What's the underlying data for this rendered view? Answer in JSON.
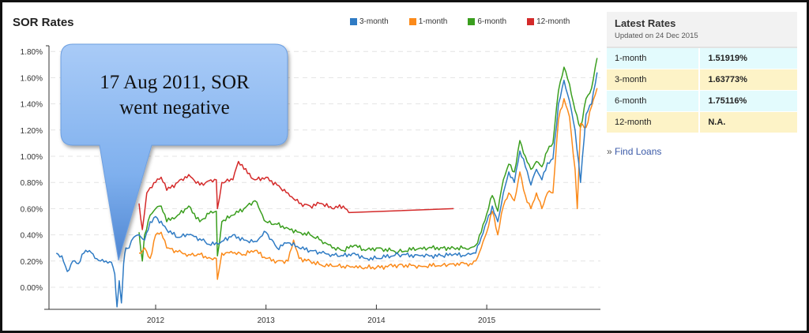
{
  "header": {
    "title": "SOR Rates"
  },
  "legend": [
    {
      "label": "3-month",
      "color": "#2f7bc4"
    },
    {
      "label": "1-month",
      "color": "#fb8a1a"
    },
    {
      "label": "6-month",
      "color": "#3a9e1e"
    },
    {
      "label": "12-month",
      "color": "#d42a2a"
    }
  ],
  "callout": {
    "line1": "17 Aug 2011, SOR",
    "line2": "went negative"
  },
  "panel": {
    "title": "Latest Rates",
    "updated": "Updated on 24 Dec 2015",
    "rows": [
      {
        "tenor": "1-month",
        "rate": "1.51919%"
      },
      {
        "tenor": "3-month",
        "rate": "1.63773%"
      },
      {
        "tenor": "6-month",
        "rate": "1.75116%"
      },
      {
        "tenor": "12-month",
        "rate": "N.A."
      }
    ],
    "link_prefix": "»",
    "link_label": "Find Loans"
  },
  "chart_data": {
    "type": "line",
    "title": "SOR Rates",
    "xlabel": "",
    "ylabel": "",
    "ylim": [
      -0.17,
      1.8
    ],
    "xlim": [
      2011.1,
      2016.0
    ],
    "y_ticks": [
      "0.00%",
      "0.20%",
      "0.40%",
      "0.60%",
      "0.80%",
      "1.00%",
      "1.20%",
      "1.40%",
      "1.60%",
      "1.80%"
    ],
    "x_ticks": [
      "2012",
      "2013",
      "2014",
      "2015"
    ],
    "grid": "horizontal dashed",
    "legend_position": "top",
    "annotation": "17 Aug 2011, SOR went negative",
    "series": [
      {
        "name": "3-month",
        "color": "#2f7bc4",
        "x": [
          2011.1,
          2011.15,
          2011.2,
          2011.25,
          2011.3,
          2011.35,
          2011.4,
          2011.45,
          2011.5,
          2011.55,
          2011.6,
          2011.63,
          2011.65,
          2011.67,
          2011.69,
          2011.71,
          2011.73,
          2011.76,
          2011.8,
          2011.85,
          2011.9,
          2011.95,
          2012.0,
          2012.1,
          2012.2,
          2012.3,
          2012.4,
          2012.5,
          2012.6,
          2012.7,
          2012.8,
          2012.9,
          2013.0,
          2013.1,
          2013.2,
          2013.3,
          2013.4,
          2013.5,
          2013.6,
          2013.7,
          2013.8,
          2013.9,
          2014.0,
          2014.2,
          2014.4,
          2014.6,
          2014.7,
          2014.8,
          2014.85,
          2014.9,
          2014.95,
          2015.0,
          2015.05,
          2015.1,
          2015.15,
          2015.2,
          2015.25,
          2015.3,
          2015.35,
          2015.4,
          2015.45,
          2015.5,
          2015.55,
          2015.6,
          2015.65,
          2015.7,
          2015.75,
          2015.8,
          2015.85,
          2015.9,
          2015.95,
          2016.0
        ],
        "values": [
          0.26,
          0.24,
          0.12,
          0.2,
          0.18,
          0.26,
          0.28,
          0.22,
          0.2,
          0.2,
          0.19,
          0.1,
          -0.15,
          0.05,
          -0.12,
          0.18,
          0.3,
          0.3,
          0.38,
          0.4,
          0.36,
          0.5,
          0.54,
          0.44,
          0.38,
          0.4,
          0.37,
          0.32,
          0.35,
          0.4,
          0.36,
          0.35,
          0.42,
          0.3,
          0.34,
          0.3,
          0.28,
          0.26,
          0.25,
          0.24,
          0.26,
          0.22,
          0.22,
          0.25,
          0.24,
          0.24,
          0.25,
          0.24,
          0.25,
          0.26,
          0.38,
          0.5,
          0.62,
          0.5,
          0.72,
          0.88,
          0.8,
          1.04,
          0.92,
          0.78,
          0.9,
          0.82,
          0.95,
          0.98,
          1.4,
          1.58,
          1.42,
          1.2,
          0.8,
          1.32,
          1.4,
          1.64
        ]
      },
      {
        "name": "1-month",
        "color": "#fb8a1a",
        "x": [
          2011.85,
          2011.9,
          2011.95,
          2012.0,
          2012.05,
          2012.1,
          2012.2,
          2012.3,
          2012.4,
          2012.5,
          2012.55,
          2012.56,
          2012.6,
          2012.7,
          2012.8,
          2012.9,
          2013.0,
          2013.1,
          2013.2,
          2013.25,
          2013.3,
          2013.4,
          2013.5,
          2013.6,
          2013.7,
          2013.8,
          2013.9,
          2014.0,
          2014.2,
          2014.4,
          2014.6,
          2014.7,
          2014.8,
          2014.85,
          2014.9,
          2014.95,
          2015.0,
          2015.05,
          2015.1,
          2015.15,
          2015.2,
          2015.25,
          2015.3,
          2015.35,
          2015.4,
          2015.45,
          2015.5,
          2015.55,
          2015.6,
          2015.65,
          2015.7,
          2015.75,
          2015.8,
          2015.82,
          2015.85,
          2015.9,
          2015.95,
          2016.0
        ],
        "values": [
          0.26,
          0.3,
          0.22,
          0.4,
          0.42,
          0.3,
          0.27,
          0.25,
          0.25,
          0.22,
          0.22,
          0.06,
          0.26,
          0.26,
          0.25,
          0.28,
          0.22,
          0.2,
          0.2,
          0.36,
          0.22,
          0.2,
          0.17,
          0.16,
          0.16,
          0.15,
          0.15,
          0.15,
          0.17,
          0.16,
          0.17,
          0.18,
          0.18,
          0.18,
          0.2,
          0.3,
          0.42,
          0.58,
          0.4,
          0.62,
          0.72,
          0.66,
          0.88,
          0.7,
          0.6,
          0.72,
          0.6,
          0.72,
          0.72,
          1.28,
          1.44,
          1.3,
          0.9,
          0.6,
          1.25,
          1.22,
          1.38,
          1.52
        ]
      },
      {
        "name": "6-month",
        "color": "#3a9e1e",
        "x": [
          2011.85,
          2011.88,
          2011.9,
          2011.95,
          2012.0,
          2012.05,
          2012.1,
          2012.2,
          2012.3,
          2012.4,
          2012.5,
          2012.55,
          2012.56,
          2012.6,
          2012.7,
          2012.8,
          2012.9,
          2013.0,
          2013.1,
          2013.2,
          2013.3,
          2013.4,
          2013.5,
          2013.6,
          2013.7,
          2013.8,
          2013.9,
          2014.0,
          2014.2,
          2014.4,
          2014.6,
          2014.7,
          2014.8,
          2014.85,
          2014.9,
          2014.95,
          2015.0,
          2015.05,
          2015.1,
          2015.15,
          2015.2,
          2015.25,
          2015.3,
          2015.35,
          2015.4,
          2015.45,
          2015.5,
          2015.55,
          2015.6,
          2015.65,
          2015.7,
          2015.75,
          2015.8,
          2015.85,
          2015.9,
          2015.95,
          2016.0
        ],
        "values": [
          0.42,
          0.2,
          0.4,
          0.55,
          0.6,
          0.62,
          0.5,
          0.55,
          0.62,
          0.5,
          0.58,
          0.58,
          0.24,
          0.5,
          0.55,
          0.6,
          0.66,
          0.5,
          0.48,
          0.45,
          0.42,
          0.4,
          0.36,
          0.3,
          0.28,
          0.32,
          0.28,
          0.3,
          0.27,
          0.3,
          0.3,
          0.3,
          0.3,
          0.3,
          0.32,
          0.42,
          0.56,
          0.7,
          0.58,
          0.82,
          0.94,
          0.88,
          1.12,
          1.0,
          0.9,
          0.96,
          0.92,
          1.04,
          1.1,
          1.5,
          1.68,
          1.55,
          1.35,
          1.22,
          1.44,
          1.52,
          1.75
        ]
      },
      {
        "name": "12-month",
        "color": "#d42a2a",
        "x": [
          2011.85,
          2011.88,
          2011.92,
          2011.95,
          2012.0,
          2012.05,
          2012.1,
          2012.2,
          2012.3,
          2012.4,
          2012.5,
          2012.55,
          2012.56,
          2012.6,
          2012.7,
          2012.75,
          2012.8,
          2012.9,
          2013.0,
          2013.1,
          2013.2,
          2013.3,
          2013.4,
          2013.5,
          2013.6,
          2013.7,
          2013.75,
          2014.7
        ],
        "values": [
          0.64,
          0.44,
          0.72,
          0.76,
          0.8,
          0.84,
          0.74,
          0.8,
          0.86,
          0.78,
          0.82,
          0.82,
          0.6,
          0.8,
          0.82,
          0.96,
          0.9,
          0.82,
          0.84,
          0.78,
          0.72,
          0.64,
          0.62,
          0.64,
          0.6,
          0.62,
          0.57,
          0.6
        ]
      }
    ]
  }
}
